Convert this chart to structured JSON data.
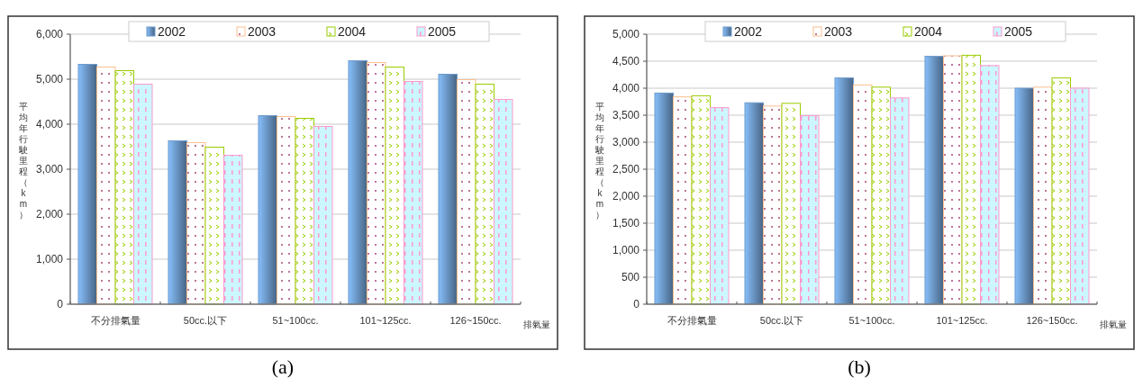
{
  "chart_data": [
    {
      "type": "bar",
      "ylabel": "平均年行駛里程（km）",
      "xlabel": "排氣量",
      "categories": [
        "不分排氣量",
        "50cc.以下",
        "51~100cc.",
        "101~125cc.",
        "126~150cc."
      ],
      "series": [
        {
          "name": "2002",
          "color": "#6d9acb",
          "values": [
            5330,
            3630,
            4190,
            5410,
            5110
          ]
        },
        {
          "name": "2003",
          "color": "#fac090",
          "values": [
            5270,
            3590,
            4170,
            5370,
            4990
          ]
        },
        {
          "name": "2004",
          "color": "#99cc00",
          "values": [
            5190,
            3490,
            4130,
            5270,
            4890
          ]
        },
        {
          "name": "2005",
          "color": "#ff99cc",
          "values": [
            4890,
            3310,
            3950,
            4950,
            4550
          ]
        }
      ],
      "ylim": [
        0,
        6000
      ],
      "yticks": [
        0,
        {
          "value": 1000,
          "label": "1,000"
        },
        {
          "value": 2000,
          "label": "2,000"
        },
        {
          "value": 3000,
          "label": "3,000"
        },
        {
          "value": 4000,
          "label": "4,000"
        },
        {
          "value": 5000,
          "label": "5,000"
        },
        {
          "value": 6000,
          "label": "6,000"
        }
      ],
      "grid": "y",
      "legend": "top",
      "annotations": [
        "(a)"
      ]
    },
    {
      "type": "bar",
      "ylabel": "平均年行駛里程（km）",
      "xlabel": "排氣量",
      "categories": [
        "不分排氣量",
        "50cc.以下",
        "51~100cc.",
        "101~125cc.",
        "126~150cc."
      ],
      "series": [
        {
          "name": "2002",
          "color": "#6d9acb",
          "values": [
            3910,
            3730,
            4190,
            4590,
            4000
          ]
        },
        {
          "name": "2003",
          "color": "#fac090",
          "values": [
            3840,
            3670,
            4060,
            4600,
            4020
          ]
        },
        {
          "name": "2004",
          "color": "#99cc00",
          "values": [
            3860,
            3720,
            4020,
            4610,
            4190
          ]
        },
        {
          "name": "2005",
          "color": "#ff99cc",
          "values": [
            3640,
            3490,
            3820,
            4420,
            4000
          ]
        }
      ],
      "ylim": [
        0,
        5000
      ],
      "yticks": [
        0,
        {
          "value": 500,
          "label": "500"
        },
        {
          "value": 1000,
          "label": "1,000"
        },
        {
          "value": 1500,
          "label": "1,500"
        },
        {
          "value": 2000,
          "label": "2,000"
        },
        {
          "value": 2500,
          "label": "2,500"
        },
        {
          "value": 3000,
          "label": "3,000"
        },
        {
          "value": 3500,
          "label": "3,500"
        },
        {
          "value": 4000,
          "label": "4,000"
        },
        {
          "value": 4500,
          "label": "4,500"
        },
        {
          "value": 5000,
          "label": "5,000"
        }
      ],
      "grid": "y",
      "legend": "top",
      "annotations": [
        "(b)"
      ]
    }
  ]
}
